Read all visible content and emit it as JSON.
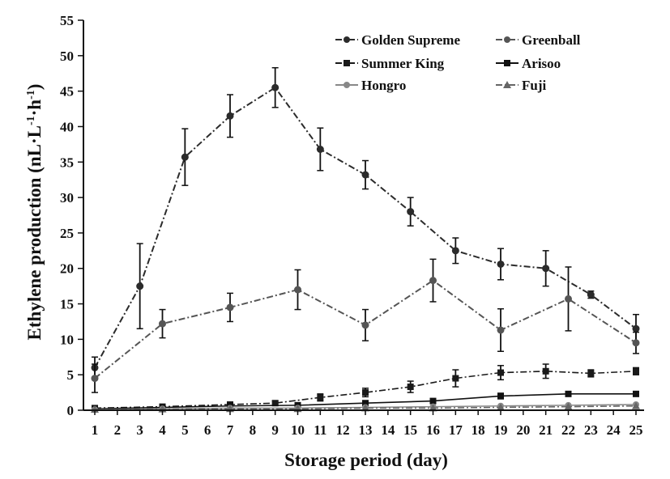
{
  "chart_data": {
    "type": "line",
    "xlabel": "Storage period (day)",
    "ylabel": "Ethylene production (nL·L⁻¹·h⁻¹)",
    "ylabel_parts": {
      "prefix": "Ethylene production (nL·L",
      "sup1": "-1",
      "mid": "·h",
      "sup2": "-1",
      "suffix": ")"
    },
    "x_ticks": [
      "1",
      "2",
      "3",
      "4",
      "5",
      "6",
      "7",
      "8",
      "9",
      "10",
      "11",
      "12",
      "13",
      "14",
      "15",
      "16",
      "17",
      "18",
      "19",
      "20",
      "21",
      "22",
      "23",
      "24",
      "25"
    ],
    "y_ticks": [
      "0",
      "5",
      "10",
      "15",
      "20",
      "25",
      "30",
      "35",
      "40",
      "45",
      "50",
      "55"
    ],
    "xlim": [
      1,
      25
    ],
    "ylim": [
      0,
      55
    ],
    "grid": false,
    "legend_position": "top-right",
    "series": [
      {
        "name": "Golden Supreme",
        "marker": "circle",
        "line": "dash-dot",
        "x": [
          1,
          3,
          5,
          7,
          9,
          11,
          13,
          15,
          17,
          19,
          21,
          23,
          25
        ],
        "y": [
          6.0,
          17.5,
          35.7,
          41.5,
          45.5,
          36.8,
          33.2,
          28.0,
          22.5,
          20.6,
          20.0,
          16.3,
          11.5
        ],
        "err": [
          1.5,
          6.0,
          4.0,
          3.0,
          2.8,
          3.0,
          2.0,
          2.0,
          1.8,
          2.2,
          2.5,
          0.5,
          2.0
        ]
      },
      {
        "name": "Greenball",
        "marker": "circle",
        "line": "dash-dot",
        "x": [
          1,
          4,
          7,
          10,
          13,
          16,
          19,
          22,
          25
        ],
        "y": [
          4.5,
          12.2,
          14.5,
          17.0,
          12.0,
          18.3,
          11.3,
          15.7,
          9.5
        ],
        "err": [
          2.0,
          2.0,
          2.0,
          2.8,
          2.2,
          3.0,
          3.0,
          4.5,
          1.5
        ]
      },
      {
        "name": "Summer King",
        "marker": "square",
        "line": "dash-dot",
        "x": [
          1,
          4,
          7,
          9,
          11,
          13,
          15,
          17,
          19,
          21,
          23,
          25
        ],
        "y": [
          0.3,
          0.5,
          0.8,
          1.0,
          1.8,
          2.5,
          3.3,
          4.5,
          5.3,
          5.5,
          5.2,
          5.5
        ],
        "err": [
          0.1,
          0.2,
          0.3,
          0.3,
          0.5,
          0.6,
          0.8,
          1.2,
          1.0,
          1.0,
          0.5,
          0.5
        ]
      },
      {
        "name": "Arisoo",
        "marker": "square",
        "line": "solid",
        "x": [
          1,
          4,
          7,
          10,
          13,
          16,
          19,
          22,
          25
        ],
        "y": [
          0.2,
          0.4,
          0.6,
          0.7,
          1.0,
          1.3,
          2.0,
          2.3,
          2.3
        ],
        "err": [
          0.1,
          0.1,
          0.2,
          0.2,
          0.3,
          0.3,
          0.4,
          0.3,
          0.3
        ]
      },
      {
        "name": "Hongro",
        "marker": "circle",
        "line": "solid",
        "x": [
          1,
          4,
          7,
          10,
          13,
          16,
          19,
          22,
          25
        ],
        "y": [
          0.1,
          0.2,
          0.3,
          0.3,
          0.4,
          0.5,
          0.6,
          0.7,
          0.8
        ],
        "err": [
          0.05,
          0.05,
          0.1,
          0.1,
          0.1,
          0.1,
          0.1,
          0.1,
          0.1
        ]
      },
      {
        "name": "Fuji",
        "marker": "triangle",
        "line": "dash-dot",
        "x": [
          1,
          4,
          7,
          10,
          13,
          16,
          19,
          22,
          25
        ],
        "y": [
          0.1,
          0.15,
          0.2,
          0.2,
          0.3,
          0.3,
          0.4,
          0.5,
          0.6
        ],
        "err": [
          0.05,
          0.05,
          0.05,
          0.05,
          0.1,
          0.1,
          0.1,
          0.1,
          0.1
        ]
      }
    ]
  }
}
